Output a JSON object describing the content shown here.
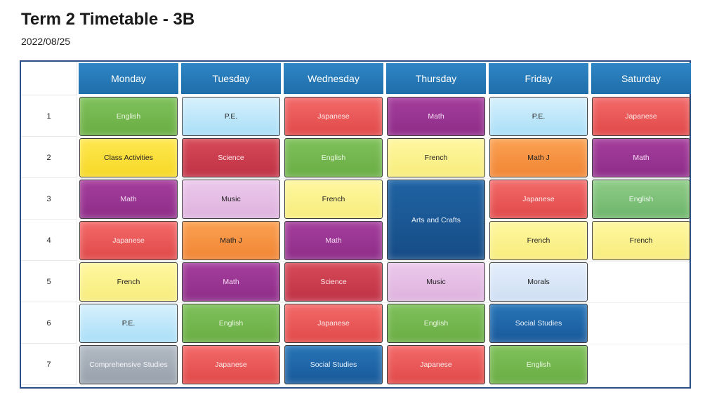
{
  "header": {
    "title": "Term 2 Timetable - 3B",
    "date": "2022/08/25"
  },
  "days": [
    "Monday",
    "Tuesday",
    "Wednesday",
    "Thursday",
    "Friday",
    "Saturday"
  ],
  "periods": [
    "1",
    "2",
    "3",
    "4",
    "5",
    "6",
    "7"
  ],
  "colors": {
    "header_blue": "#2f86c4",
    "border": "#2a4f86"
  },
  "timetable": [
    [
      {
        "subject": "English",
        "color": "green"
      },
      {
        "subject": "Class Activities",
        "color": "gold"
      },
      {
        "subject": "Math",
        "color": "purple"
      },
      {
        "subject": "Japanese",
        "color": "red"
      },
      {
        "subject": "French",
        "color": "yellow"
      },
      {
        "subject": "P.E.",
        "color": "skyblue"
      },
      {
        "subject": "Comprehensive Studies",
        "color": "gray"
      }
    ],
    [
      {
        "subject": "P.E.",
        "color": "skyblue"
      },
      {
        "subject": "Science",
        "color": "crimson"
      },
      {
        "subject": "Music",
        "color": "lilac"
      },
      {
        "subject": "Math J",
        "color": "orange"
      },
      {
        "subject": "Math",
        "color": "purple"
      },
      {
        "subject": "English",
        "color": "green"
      },
      {
        "subject": "Japanese",
        "color": "red"
      }
    ],
    [
      {
        "subject": "Japanese",
        "color": "red"
      },
      {
        "subject": "English",
        "color": "green"
      },
      {
        "subject": "French",
        "color": "yellow"
      },
      {
        "subject": "Math",
        "color": "purple"
      },
      {
        "subject": "Science",
        "color": "crimson"
      },
      {
        "subject": "Japanese",
        "color": "red"
      },
      {
        "subject": "Social Studies",
        "color": "navy"
      }
    ],
    [
      {
        "subject": "Math",
        "color": "purple"
      },
      {
        "subject": "French",
        "color": "yellow"
      },
      {
        "subject": "Arts and Crafts",
        "color": "deepnavy",
        "span": 2
      },
      null,
      {
        "subject": "Music",
        "color": "lilac"
      },
      {
        "subject": "English",
        "color": "green"
      },
      {
        "subject": "Japanese",
        "color": "red"
      }
    ],
    [
      {
        "subject": "P.E.",
        "color": "skyblue"
      },
      {
        "subject": "Math J",
        "color": "orange"
      },
      {
        "subject": "Japanese",
        "color": "red"
      },
      {
        "subject": "French",
        "color": "yellow"
      },
      {
        "subject": "Morals",
        "color": "paleblue"
      },
      {
        "subject": "Social Studies",
        "color": "navy"
      },
      {
        "subject": "English",
        "color": "green"
      }
    ],
    [
      {
        "subject": "Japanese",
        "color": "red"
      },
      {
        "subject": "Math",
        "color": "purple"
      },
      {
        "subject": "English",
        "color": "green2"
      },
      {
        "subject": "French",
        "color": "yellow"
      },
      null,
      null,
      null
    ]
  ]
}
